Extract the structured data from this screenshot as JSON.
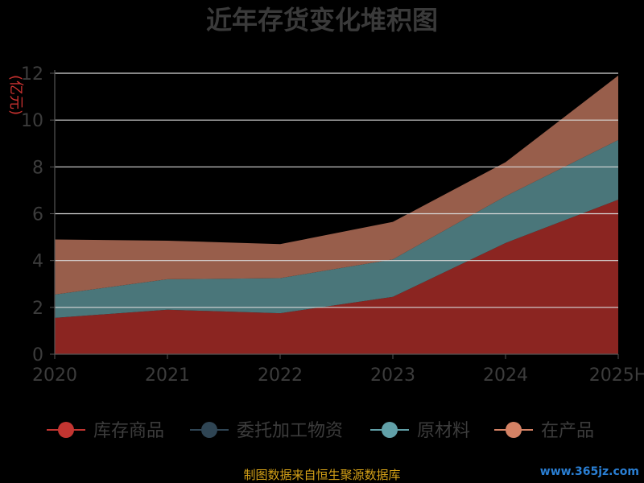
{
  "chart_data": {
    "type": "area",
    "stacked": true,
    "title": "近年存货变化堆积图",
    "ylabel": "(亿元)",
    "categories": [
      "2020",
      "2021",
      "2022",
      "2023",
      "2024",
      "2025H"
    ],
    "ylim": [
      0,
      12
    ],
    "yticks": [
      0,
      2,
      4,
      6,
      8,
      10,
      12
    ],
    "grid": true,
    "legend_position": "bottom",
    "series": [
      {
        "name": "库存商品",
        "color": "#8b2521",
        "legend_color": "#c23531",
        "values": [
          1.55,
          1.9,
          1.75,
          2.45,
          4.75,
          6.6
        ]
      },
      {
        "name": "委托加工物资",
        "color": "#2f4554",
        "legend_color": "#2f4554",
        "values": [
          0,
          0,
          0,
          0,
          0,
          0
        ]
      },
      {
        "name": "原材料",
        "color": "#4a767a",
        "legend_color": "#61a0a8",
        "values": [
          1.0,
          1.3,
          1.5,
          1.6,
          2.0,
          2.55
        ]
      },
      {
        "name": "在产品",
        "color": "#985e4b",
        "legend_color": "#d48265",
        "values": [
          2.35,
          1.65,
          1.45,
          1.6,
          1.45,
          2.75
        ]
      }
    ]
  },
  "source_text": "制图数据来自恒生聚源数据库",
  "watermark_text": "www.365jz.com"
}
